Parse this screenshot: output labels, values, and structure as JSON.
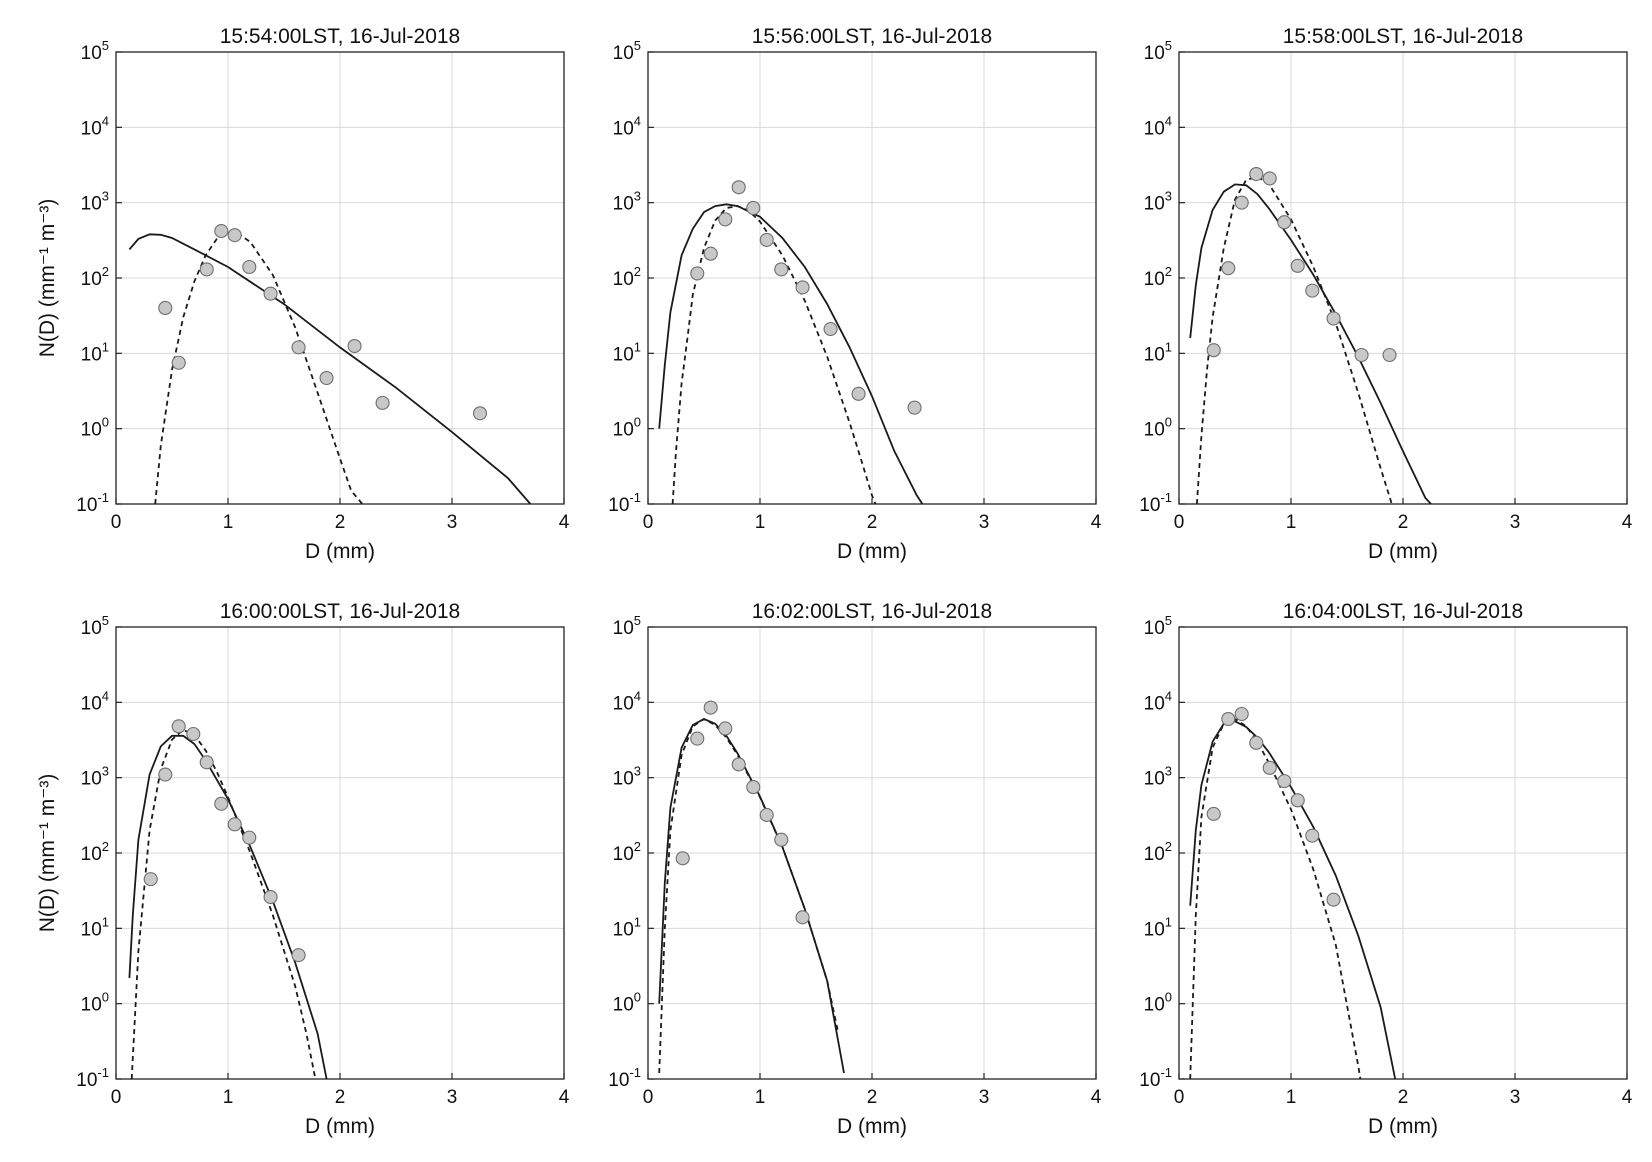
{
  "chart_data": [
    {
      "type": "scatter",
      "title": "15:54:00LST, 16-Jul-2018",
      "xlabel": "D (mm)",
      "ylabel": "N(D)  (mm⁻¹ m⁻³)",
      "xlim": [
        0,
        4
      ],
      "ylim": [
        0.1,
        100000
      ],
      "yscale": "log",
      "grid": true,
      "x_ticks": [
        "0",
        "1",
        "2",
        "3",
        "4"
      ],
      "y_ticks": [
        {
          "base": "10",
          "exp": "-1"
        },
        {
          "base": "10",
          "exp": "0"
        },
        {
          "base": "10",
          "exp": "1"
        },
        {
          "base": "10",
          "exp": "2"
        },
        {
          "base": "10",
          "exp": "3"
        },
        {
          "base": "10",
          "exp": "4"
        },
        {
          "base": "10",
          "exp": "5"
        }
      ],
      "observed": {
        "x": [
          0.44,
          0.56,
          0.81,
          0.94,
          1.06,
          1.19,
          1.38,
          1.63,
          1.88,
          2.13,
          2.38,
          3.25
        ],
        "y": [
          40,
          7.5,
          130,
          420,
          370,
          140,
          62,
          12,
          4.7,
          12.5,
          2.2,
          1.6
        ]
      },
      "solid_fit": {
        "x": [
          0.12,
          0.2,
          0.3,
          0.4,
          0.5,
          0.7,
          1.0,
          1.5,
          2.0,
          2.5,
          3.0,
          3.5,
          3.7
        ],
        "y": [
          240,
          330,
          380,
          375,
          340,
          240,
          140,
          45,
          12,
          3.5,
          0.9,
          0.22,
          0.1
        ]
      },
      "dashed_fit": {
        "x": [
          0.35,
          0.4,
          0.5,
          0.6,
          0.7,
          0.8,
          0.9,
          1.0,
          1.1,
          1.2,
          1.4,
          1.6,
          1.8,
          2.0,
          2.1,
          2.2
        ],
        "y": [
          0.1,
          0.6,
          6,
          30,
          90,
          200,
          330,
          400,
          380,
          300,
          110,
          22,
          3,
          0.4,
          0.15,
          0.1
        ]
      }
    },
    {
      "type": "scatter",
      "title": "15:56:00LST, 16-Jul-2018",
      "xlabel": "D (mm)",
      "ylabel": "",
      "xlim": [
        0,
        4
      ],
      "ylim": [
        0.1,
        100000
      ],
      "yscale": "log",
      "grid": true,
      "x_ticks": [
        "0",
        "1",
        "2",
        "3",
        "4"
      ],
      "y_ticks": [
        {
          "base": "10",
          "exp": "-1"
        },
        {
          "base": "10",
          "exp": "0"
        },
        {
          "base": "10",
          "exp": "1"
        },
        {
          "base": "10",
          "exp": "2"
        },
        {
          "base": "10",
          "exp": "3"
        },
        {
          "base": "10",
          "exp": "4"
        },
        {
          "base": "10",
          "exp": "5"
        }
      ],
      "observed": {
        "x": [
          0.44,
          0.56,
          0.69,
          0.81,
          0.94,
          1.06,
          1.19,
          1.38,
          1.63,
          1.88,
          2.38
        ],
        "y": [
          115,
          210,
          600,
          1600,
          850,
          320,
          130,
          75,
          21,
          2.9,
          1.9
        ]
      },
      "solid_fit": {
        "x": [
          0.1,
          0.15,
          0.2,
          0.3,
          0.4,
          0.5,
          0.6,
          0.7,
          0.8,
          1.0,
          1.2,
          1.4,
          1.6,
          1.8,
          2.0,
          2.2,
          2.4,
          2.45
        ],
        "y": [
          1,
          7,
          35,
          200,
          450,
          750,
          900,
          950,
          900,
          650,
          340,
          140,
          45,
          12,
          2.7,
          0.5,
          0.13,
          0.1
        ]
      },
      "dashed_fit": {
        "x": [
          0.22,
          0.25,
          0.3,
          0.35,
          0.4,
          0.5,
          0.6,
          0.7,
          0.8,
          0.9,
          1.0,
          1.2,
          1.4,
          1.6,
          1.8,
          1.9,
          2.0,
          2.03
        ],
        "y": [
          0.1,
          0.5,
          4,
          15,
          60,
          250,
          580,
          850,
          900,
          780,
          560,
          200,
          50,
          9,
          1.2,
          0.4,
          0.13,
          0.1
        ]
      }
    },
    {
      "type": "scatter",
      "title": "15:58:00LST, 16-Jul-2018",
      "xlabel": "D (mm)",
      "ylabel": "",
      "xlim": [
        0,
        4
      ],
      "ylim": [
        0.1,
        100000
      ],
      "yscale": "log",
      "grid": true,
      "x_ticks": [
        "0",
        "1",
        "2",
        "3",
        "4"
      ],
      "y_ticks": [
        {
          "base": "10",
          "exp": "-1"
        },
        {
          "base": "10",
          "exp": "0"
        },
        {
          "base": "10",
          "exp": "1"
        },
        {
          "base": "10",
          "exp": "2"
        },
        {
          "base": "10",
          "exp": "3"
        },
        {
          "base": "10",
          "exp": "4"
        },
        {
          "base": "10",
          "exp": "5"
        }
      ],
      "observed": {
        "x": [
          0.31,
          0.44,
          0.56,
          0.69,
          0.81,
          0.94,
          1.06,
          1.19,
          1.38,
          1.63,
          1.88
        ],
        "y": [
          11,
          135,
          1000,
          2400,
          2100,
          550,
          145,
          68,
          29,
          9.5,
          9.5
        ]
      },
      "solid_fit": {
        "x": [
          0.1,
          0.15,
          0.2,
          0.3,
          0.4,
          0.5,
          0.6,
          0.7,
          0.8,
          1.0,
          1.2,
          1.4,
          1.6,
          1.8,
          2.0,
          2.2,
          2.25
        ],
        "y": [
          16,
          80,
          250,
          800,
          1400,
          1750,
          1700,
          1300,
          850,
          320,
          110,
          33,
          9,
          2.2,
          0.5,
          0.12,
          0.1
        ]
      },
      "dashed_fit": {
        "x": [
          0.16,
          0.2,
          0.25,
          0.3,
          0.4,
          0.5,
          0.6,
          0.7,
          0.8,
          1.0,
          1.2,
          1.4,
          1.6,
          1.8,
          1.9
        ],
        "y": [
          0.1,
          0.8,
          6,
          30,
          250,
          1100,
          2000,
          2200,
          1800,
          600,
          140,
          25,
          3,
          0.3,
          0.1
        ]
      }
    },
    {
      "type": "scatter",
      "title": "16:00:00LST, 16-Jul-2018",
      "xlabel": "D (mm)",
      "ylabel": "N(D)  (mm⁻¹ m⁻³)",
      "xlim": [
        0,
        4
      ],
      "ylim": [
        0.1,
        100000
      ],
      "yscale": "log",
      "grid": true,
      "x_ticks": [
        "0",
        "1",
        "2",
        "3",
        "4"
      ],
      "y_ticks": [
        {
          "base": "10",
          "exp": "-1"
        },
        {
          "base": "10",
          "exp": "0"
        },
        {
          "base": "10",
          "exp": "1"
        },
        {
          "base": "10",
          "exp": "2"
        },
        {
          "base": "10",
          "exp": "3"
        },
        {
          "base": "10",
          "exp": "4"
        },
        {
          "base": "10",
          "exp": "5"
        }
      ],
      "observed": {
        "x": [
          0.31,
          0.44,
          0.56,
          0.69,
          0.81,
          0.94,
          1.06,
          1.19,
          1.38,
          1.63
        ],
        "y": [
          45,
          1100,
          4800,
          3800,
          1600,
          450,
          240,
          160,
          26,
          4.4
        ]
      },
      "solid_fit": {
        "x": [
          0.12,
          0.15,
          0.2,
          0.3,
          0.4,
          0.5,
          0.6,
          0.7,
          0.8,
          1.0,
          1.2,
          1.4,
          1.6,
          1.8,
          1.88
        ],
        "y": [
          2.2,
          15,
          150,
          1100,
          2600,
          3600,
          3600,
          2800,
          1700,
          520,
          120,
          23,
          3.5,
          0.4,
          0.1
        ]
      },
      "dashed_fit": {
        "x": [
          0.14,
          0.2,
          0.3,
          0.4,
          0.5,
          0.6,
          0.7,
          0.8,
          0.9,
          1.0,
          1.2,
          1.4,
          1.6,
          1.7,
          1.78
        ],
        "y": [
          0.1,
          5,
          200,
          1300,
          3200,
          4300,
          3700,
          2300,
          1200,
          550,
          100,
          15,
          1.7,
          0.4,
          0.1
        ]
      }
    },
    {
      "type": "scatter",
      "title": "16:02:00LST, 16-Jul-2018",
      "xlabel": "D (mm)",
      "ylabel": "",
      "xlim": [
        0,
        4
      ],
      "ylim": [
        0.1,
        100000
      ],
      "yscale": "log",
      "grid": true,
      "x_ticks": [
        "0",
        "1",
        "2",
        "3",
        "4"
      ],
      "y_ticks": [
        {
          "base": "10",
          "exp": "-1"
        },
        {
          "base": "10",
          "exp": "0"
        },
        {
          "base": "10",
          "exp": "1"
        },
        {
          "base": "10",
          "exp": "2"
        },
        {
          "base": "10",
          "exp": "3"
        },
        {
          "base": "10",
          "exp": "4"
        },
        {
          "base": "10",
          "exp": "5"
        }
      ],
      "observed": {
        "x": [
          0.31,
          0.44,
          0.56,
          0.69,
          0.81,
          0.94,
          1.06,
          1.19,
          1.38
        ],
        "y": [
          85,
          3300,
          8500,
          4500,
          1500,
          750,
          320,
          150,
          14
        ]
      },
      "solid_fit": {
        "x": [
          0.1,
          0.15,
          0.2,
          0.3,
          0.4,
          0.5,
          0.6,
          0.7,
          0.8,
          1.0,
          1.2,
          1.4,
          1.6,
          1.75
        ],
        "y": [
          1,
          40,
          400,
          2500,
          5000,
          6000,
          5200,
          3600,
          2100,
          560,
          120,
          18,
          2,
          0.12
        ]
      },
      "dashed_fit": {
        "x": [
          0.1,
          0.15,
          0.2,
          0.3,
          0.4,
          0.5,
          0.6,
          0.7,
          0.8,
          1.0,
          1.2,
          1.4,
          1.6,
          1.7
        ],
        "y": [
          0.12,
          10,
          200,
          2000,
          4800,
          6000,
          5000,
          3400,
          2000,
          550,
          120,
          18,
          2,
          0.4
        ]
      }
    },
    {
      "type": "scatter",
      "title": "16:04:00LST, 16-Jul-2018",
      "xlabel": "D (mm)",
      "ylabel": "",
      "xlim": [
        0,
        4
      ],
      "ylim": [
        0.1,
        100000
      ],
      "yscale": "log",
      "grid": true,
      "x_ticks": [
        "0",
        "1",
        "2",
        "3",
        "4"
      ],
      "y_ticks": [
        {
          "base": "10",
          "exp": "-1"
        },
        {
          "base": "10",
          "exp": "0"
        },
        {
          "base": "10",
          "exp": "1"
        },
        {
          "base": "10",
          "exp": "2"
        },
        {
          "base": "10",
          "exp": "3"
        },
        {
          "base": "10",
          "exp": "4"
        },
        {
          "base": "10",
          "exp": "5"
        }
      ],
      "observed": {
        "x": [
          0.31,
          0.44,
          0.56,
          0.69,
          0.81,
          0.94,
          1.06,
          1.19,
          1.38
        ],
        "y": [
          330,
          6000,
          7000,
          2900,
          1350,
          900,
          500,
          170,
          24
        ]
      },
      "solid_fit": {
        "x": [
          0.1,
          0.15,
          0.2,
          0.3,
          0.4,
          0.5,
          0.6,
          0.7,
          0.8,
          1.0,
          1.2,
          1.4,
          1.6,
          1.8,
          1.93
        ],
        "y": [
          20,
          200,
          800,
          3000,
          5200,
          5600,
          4700,
          3400,
          2200,
          750,
          220,
          50,
          8,
          0.9,
          0.1
        ]
      },
      "dashed_fit": {
        "x": [
          0.1,
          0.15,
          0.2,
          0.3,
          0.4,
          0.5,
          0.6,
          0.7,
          0.8,
          1.0,
          1.2,
          1.4,
          1.6,
          1.62
        ],
        "y": [
          0.1,
          15,
          300,
          2500,
          5200,
          6000,
          4800,
          3000,
          1600,
          380,
          60,
          6,
          0.15,
          0.1
        ]
      }
    }
  ]
}
